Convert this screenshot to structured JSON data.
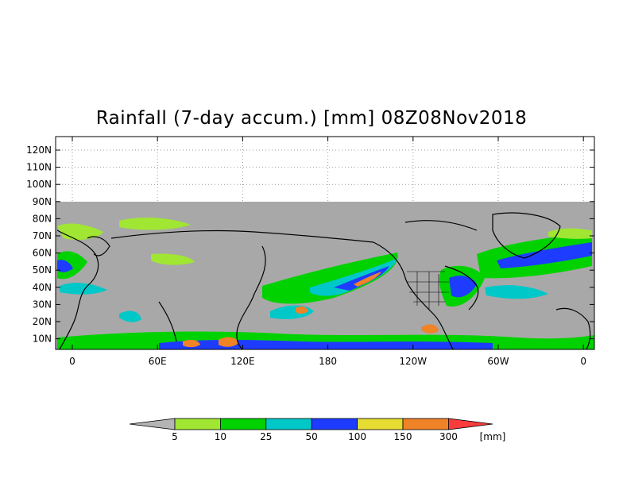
{
  "map": {
    "title": "Rainfall (7-day accum.) [mm] 08Z08Nov2018",
    "latitude_labels": [
      "120N",
      "110N",
      "100N",
      "90N",
      "80N",
      "70N",
      "60N",
      "50N",
      "40N",
      "30N",
      "20N",
      "10N"
    ],
    "longitude_labels": [
      "0",
      "60E",
      "120E",
      "180",
      "120W",
      "60W",
      "0"
    ],
    "colors": {
      "no_data": "#a8a8a8",
      "below_5": "#b0b0b0",
      "coastline": "#000000",
      "grid": "#999999"
    }
  },
  "colorbar": {
    "unit": "[mm]",
    "thresholds": [
      "5",
      "10",
      "25",
      "50",
      "100",
      "150",
      "300"
    ],
    "bins": [
      {
        "range": "<5",
        "color": "#b4b4b4"
      },
      {
        "range": "5-10",
        "color": "#a0e632"
      },
      {
        "range": "10-25",
        "color": "#00d200"
      },
      {
        "range": "25-50",
        "color": "#00c8c8"
      },
      {
        "range": "50-100",
        "color": "#1e3cff"
      },
      {
        "range": "100-150",
        "color": "#e6dc32"
      },
      {
        "range": "150-300",
        "color": "#f08228"
      },
      {
        "range": ">300",
        "color": "#fa3c3c"
      }
    ]
  }
}
